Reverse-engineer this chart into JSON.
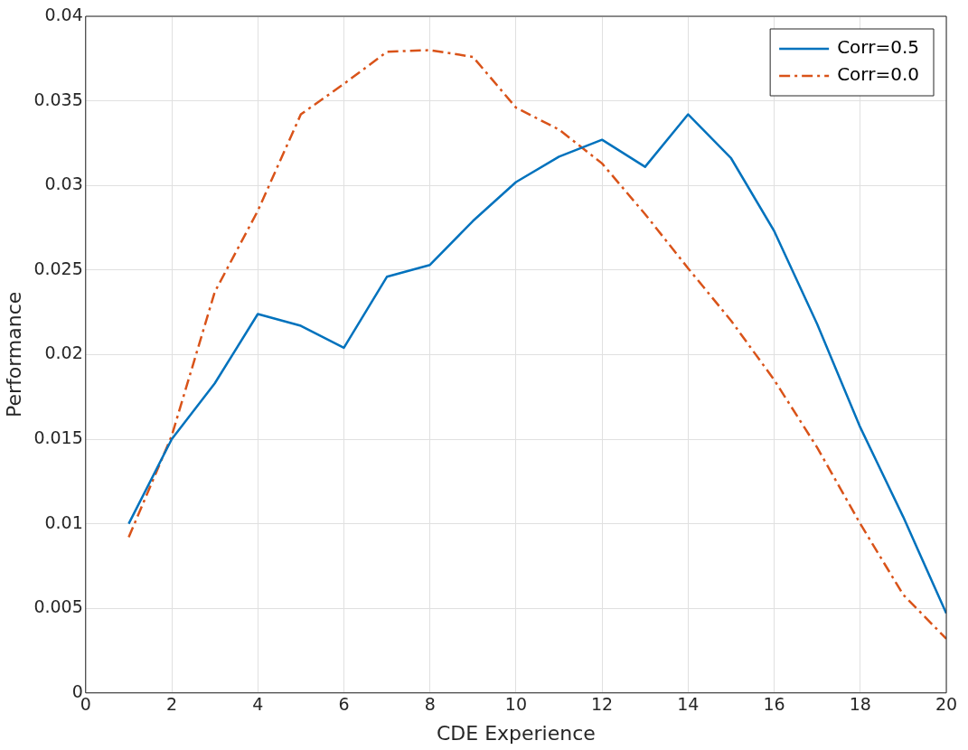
{
  "chart_data": {
    "type": "line",
    "xlabel": "CDE Experience",
    "ylabel": "Performance",
    "x": [
      1,
      2,
      3,
      4,
      5,
      6,
      7,
      8,
      9,
      10,
      11,
      12,
      13,
      14,
      15,
      16,
      17,
      18,
      19,
      20
    ],
    "series": [
      {
        "name": "Corr=0.5",
        "color": "#0072bd",
        "line_style": "solid",
        "values": [
          0.01,
          0.015,
          0.0183,
          0.0224,
          0.0217,
          0.0204,
          0.0246,
          0.0253,
          0.0279,
          0.0302,
          0.0317,
          0.0327,
          0.0311,
          0.0342,
          0.0316,
          0.0273,
          0.0218,
          0.0157,
          0.0104,
          0.0047
        ]
      },
      {
        "name": "Corr=0.0",
        "color": "#d95319",
        "line_style": "dashed",
        "values": [
          0.0092,
          0.0152,
          0.0237,
          0.0285,
          0.0342,
          0.036,
          0.0379,
          0.038,
          0.0376,
          0.0346,
          0.0333,
          0.0313,
          0.0283,
          0.0251,
          0.022,
          0.0185,
          0.0145,
          0.01,
          0.0058,
          0.0032
        ]
      }
    ],
    "xlim": [
      0,
      20
    ],
    "xticks": [
      0,
      2,
      4,
      6,
      8,
      10,
      12,
      14,
      16,
      18,
      20
    ],
    "ylim": [
      0,
      0.04
    ],
    "yticks": [
      0,
      0.005,
      0.01,
      0.015,
      0.02,
      0.025,
      0.03,
      0.035,
      0.04
    ],
    "grid": true,
    "legend": "top right",
    "marker": "none"
  }
}
